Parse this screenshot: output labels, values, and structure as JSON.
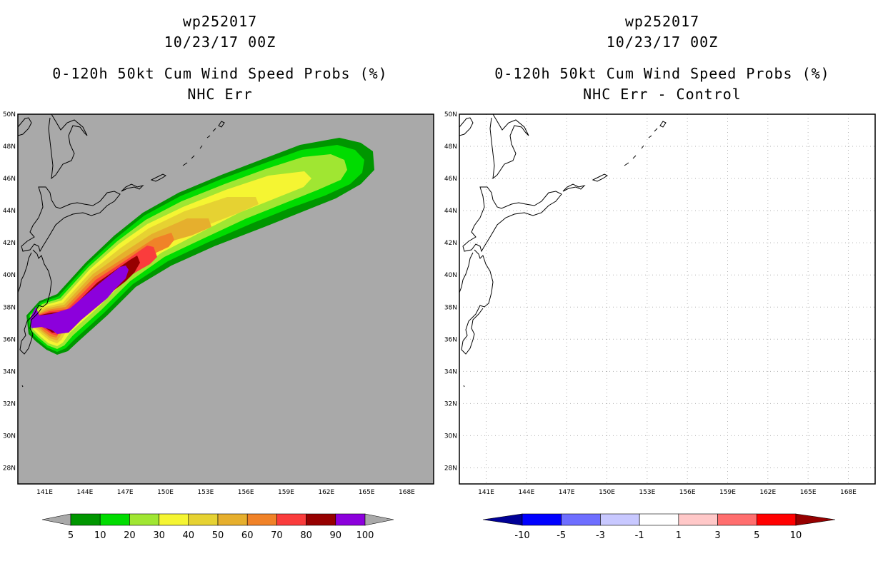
{
  "chart_data": [
    {
      "type": "contour_map",
      "storm_id": "wp252017",
      "datetime": "10/23/17 00Z",
      "title": "0-120h 50kt Cum Wind Speed Probs (%)",
      "subtitle": "NHC Err",
      "lon_range": [
        139,
        170
      ],
      "lat_range": [
        27,
        50
      ],
      "lon_ticks": [
        "141E",
        "144E",
        "147E",
        "150E",
        "153E",
        "156E",
        "159E",
        "162E",
        "165E",
        "168E"
      ],
      "lat_ticks": [
        "28N",
        "30N",
        "32N",
        "34N",
        "36N",
        "38N",
        "40N",
        "42N",
        "44N",
        "46N",
        "48N",
        "50N"
      ],
      "background_color": "#a9a9a9",
      "contour_levels": [
        5,
        10,
        20,
        30,
        40,
        50,
        60,
        70,
        80,
        90,
        100
      ],
      "colorbar_labels": [
        "5",
        "10",
        "20",
        "30",
        "40",
        "50",
        "60",
        "70",
        "80",
        "90",
        "100"
      ],
      "colorbar_colors": [
        "#a9a9a9",
        "#009600",
        "#00dc00",
        "#a0e632",
        "#f5f532",
        "#e6d232",
        "#e6af2d",
        "#f08228",
        "#fa3c3c",
        "#960000",
        "#8c00dc",
        "#a9a9a9"
      ]
    },
    {
      "type": "contour_map",
      "storm_id": "wp252017",
      "datetime": "10/23/17 00Z",
      "title": "0-120h 50kt Cum Wind Speed Probs (%)",
      "subtitle": "NHC Err - Control",
      "lon_range": [
        139,
        170
      ],
      "lat_range": [
        27,
        50
      ],
      "lon_ticks": [
        "141E",
        "144E",
        "147E",
        "150E",
        "153E",
        "156E",
        "159E",
        "162E",
        "165E",
        "168E"
      ],
      "lat_ticks": [
        "28N",
        "30N",
        "32N",
        "34N",
        "36N",
        "38N",
        "40N",
        "42N",
        "44N",
        "46N",
        "48N",
        "50N"
      ],
      "background_color": "#ffffff",
      "colorbar_labels": [
        "-10",
        "-5",
        "-3",
        "-1",
        "1",
        "3",
        "5",
        "10"
      ],
      "colorbar_colors": [
        "#000096",
        "#0000ff",
        "#6e6eff",
        "#c8c8ff",
        "#ffffff",
        "#ffc8c8",
        "#ff6e6e",
        "#ff0000",
        "#960000"
      ]
    }
  ]
}
